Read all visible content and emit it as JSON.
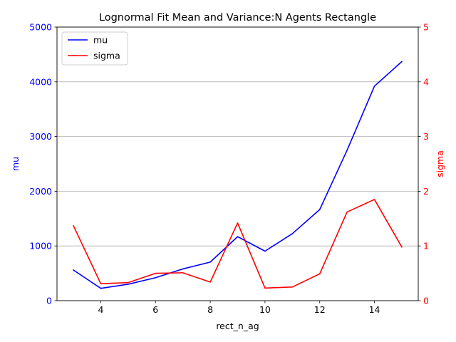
{
  "chart_data": {
    "type": "line",
    "title": "Lognormal Fit Mean and Variance:N Agents Rectangle",
    "xlabel": "rect_n_ag",
    "ylabel_left": "mu",
    "ylabel_right": "sigma",
    "x": [
      3,
      4,
      5,
      6,
      7,
      8,
      9,
      10,
      11,
      12,
      13,
      14,
      15
    ],
    "xlim": [
      2.4,
      15.6
    ],
    "xticks": [
      4,
      6,
      8,
      10,
      12,
      14
    ],
    "ylim_left": [
      0,
      5000
    ],
    "yticks_left": [
      0,
      1000,
      2000,
      3000,
      4000,
      5000
    ],
    "ylim_right": [
      0,
      5
    ],
    "yticks_right": [
      0,
      1,
      2,
      3,
      4,
      5
    ],
    "grid": "horizontal (right axis)",
    "legend_position": "top-left",
    "colors": {
      "left_axis": "#0000ff",
      "right_axis": "#ff0000"
    },
    "series": [
      {
        "name": "mu",
        "axis": "left",
        "color": "#0000ff",
        "values": [
          560,
          225,
          300,
          420,
          580,
          705,
          1170,
          905,
          1225,
          1665,
          2750,
          3920,
          4370
        ]
      },
      {
        "name": "sigma",
        "axis": "right",
        "color": "#ff0000",
        "values": [
          1.37,
          0.31,
          0.33,
          0.5,
          0.51,
          0.34,
          1.42,
          0.23,
          0.25,
          0.49,
          1.62,
          1.85,
          0.98
        ]
      }
    ]
  }
}
